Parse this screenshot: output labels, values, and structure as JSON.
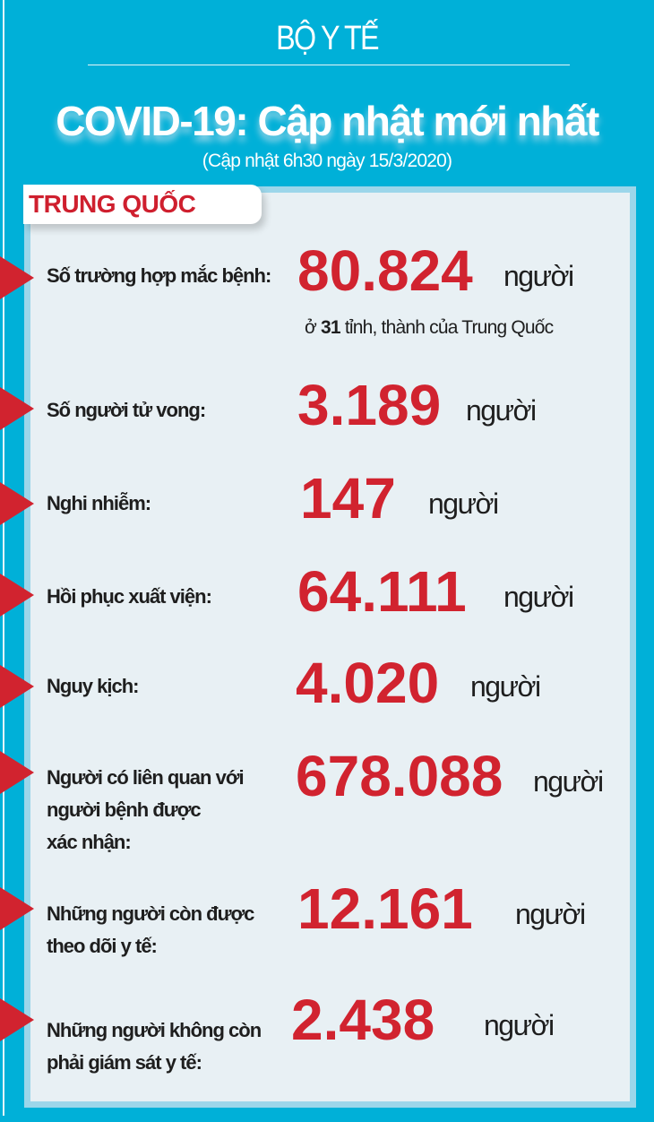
{
  "header": {
    "org": "BỘ Y TẾ",
    "title": "COVID-19: Cập nhật mới nhất",
    "subtitle": "(Cập nhật 6h30 ngày 15/3/2020)"
  },
  "section": {
    "country": "TRUNG QUỐC"
  },
  "note": {
    "prefix": "ở ",
    "count": "31",
    "suffix": " tỉnh, thành của Trung Quốc"
  },
  "unit": "người",
  "rows": [
    {
      "label": "Số trường hợp mắc bệnh:",
      "value": "80.824"
    },
    {
      "label": "Số người tử vong:",
      "value": "3.189"
    },
    {
      "label": "Nghi nhiễm:",
      "value": "147"
    },
    {
      "label": "Hồi phục xuất viện:",
      "value": "64.111"
    },
    {
      "label": "Nguy kịch:",
      "value": "4.020"
    },
    {
      "label": "Người có liên quan với\nngười bệnh được\nxác nhận:",
      "value": "678.088"
    },
    {
      "label": "Những người còn được\ntheo dõi y tế:",
      "value": "12.161"
    },
    {
      "label": "Những người không còn\nphải giám sát y tế:",
      "value": "2.438"
    }
  ],
  "colors": {
    "background": "#00b0d8",
    "panel": "#e8f0f4",
    "accent": "#d1232f"
  }
}
